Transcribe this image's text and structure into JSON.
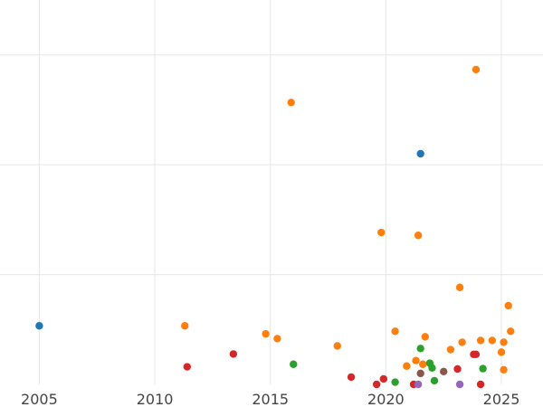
{
  "chart_data": {
    "type": "scatter",
    "title": "",
    "xlabel": "",
    "ylabel": "",
    "xlim": [
      2003.3,
      2026.8
    ],
    "ylim": [
      0,
      10.5
    ],
    "x_ticks": [
      2005,
      2010,
      2015,
      2020,
      2025
    ],
    "y_gridlines": [
      3,
      6,
      9
    ],
    "grid": true,
    "legend": "none",
    "series": [
      {
        "color": "#1f77b4",
        "points": [
          [
            2005.0,
            1.6
          ],
          [
            2021.5,
            6.3
          ]
        ]
      },
      {
        "color": "#ff7f0e",
        "points": [
          [
            2023.9,
            8.6
          ],
          [
            2015.9,
            7.7
          ],
          [
            2019.8,
            4.15
          ],
          [
            2021.4,
            4.07
          ],
          [
            2023.2,
            2.65
          ],
          [
            2025.3,
            2.15
          ],
          [
            2011.3,
            1.6
          ],
          [
            2014.8,
            1.38
          ],
          [
            2015.3,
            1.25
          ],
          [
            2017.9,
            1.05
          ],
          [
            2020.4,
            1.45
          ],
          [
            2021.7,
            1.3
          ],
          [
            2023.3,
            1.15
          ],
          [
            2024.1,
            1.2
          ],
          [
            2024.6,
            1.2
          ],
          [
            2025.1,
            1.15
          ],
          [
            2025.4,
            1.45
          ],
          [
            2022.8,
            0.95
          ],
          [
            2025.0,
            0.88
          ],
          [
            2021.3,
            0.65
          ],
          [
            2021.6,
            0.55
          ],
          [
            2020.9,
            0.5
          ],
          [
            2025.1,
            0.4
          ]
        ]
      },
      {
        "color": "#2ca02c",
        "points": [
          [
            2016.0,
            0.55
          ],
          [
            2021.5,
            0.98
          ],
          [
            2021.9,
            0.58
          ],
          [
            2022.0,
            0.45
          ],
          [
            2024.2,
            0.43
          ],
          [
            2020.4,
            0.06
          ],
          [
            2022.1,
            0.1
          ]
        ]
      },
      {
        "color": "#d62728",
        "points": [
          [
            2011.4,
            0.48
          ],
          [
            2013.4,
            0.83
          ],
          [
            2018.5,
            0.2
          ],
          [
            2019.6,
            0.0
          ],
          [
            2019.9,
            0.15
          ],
          [
            2023.1,
            0.42
          ],
          [
            2023.8,
            0.82
          ],
          [
            2023.9,
            0.82
          ],
          [
            2024.1,
            0.0
          ],
          [
            2021.2,
            0.0
          ]
        ]
      },
      {
        "color": "#9467bd",
        "points": [
          [
            2021.4,
            0.0
          ],
          [
            2023.2,
            0.0
          ]
        ]
      },
      {
        "color": "#8c564b",
        "points": [
          [
            2021.5,
            0.3
          ],
          [
            2022.5,
            0.35
          ]
        ]
      }
    ]
  }
}
